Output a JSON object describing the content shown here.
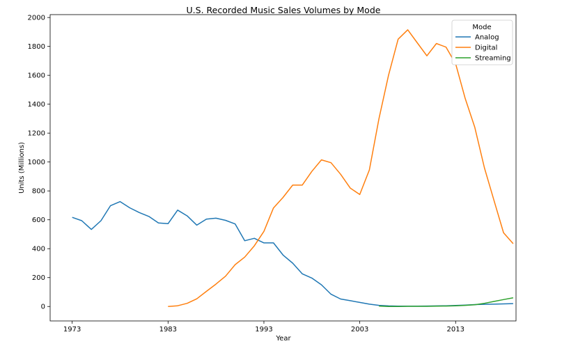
{
  "chart_data": {
    "type": "line",
    "title": "U.S. Recorded Music Sales Volumes by Mode",
    "xlabel": "Year",
    "ylabel": "Units (Millions)",
    "xlim": [
      1970.7,
      2019.3
    ],
    "ylim": [
      -100,
      2020
    ],
    "x_ticks": [
      1973,
      1983,
      1993,
      2003,
      2013
    ],
    "y_ticks": [
      0,
      200,
      400,
      600,
      800,
      1000,
      1200,
      1400,
      1600,
      1800,
      2000
    ],
    "grid": false,
    "legend": {
      "title": "Mode",
      "placement": "top-right"
    },
    "series": [
      {
        "name": "Analog",
        "color": "#1f77b4",
        "x": [
          1973,
          1974,
          1975,
          1976,
          1977,
          1978,
          1979,
          1980,
          1981,
          1982,
          1983,
          1984,
          1985,
          1986,
          1987,
          1988,
          1989,
          1990,
          1991,
          1992,
          1993,
          1994,
          1995,
          1996,
          1997,
          1998,
          1999,
          2000,
          2001,
          2002,
          2003,
          2004,
          2005,
          2006,
          2007,
          2008,
          2009,
          2010,
          2011,
          2012,
          2013,
          2014,
          2015,
          2016,
          2017,
          2018,
          2019
        ],
        "values": [
          617,
          594,
          533,
          594,
          698,
          726,
          683,
          650,
          623,
          578,
          573,
          667,
          627,
          563,
          605,
          611,
          596,
          571,
          455,
          472,
          440,
          440,
          356,
          300,
          226,
          197,
          150,
          85,
          52,
          40,
          28,
          16,
          8,
          4,
          2,
          2,
          2,
          3,
          4,
          5,
          7,
          10,
          13,
          15,
          16,
          18,
          20
        ]
      },
      {
        "name": "Digital",
        "color": "#ff7f0e",
        "x": [
          1983,
          1984,
          1985,
          1986,
          1987,
          1988,
          1989,
          1990,
          1991,
          1992,
          1993,
          1994,
          1995,
          1996,
          1997,
          1998,
          1999,
          2000,
          2001,
          2002,
          2003,
          2004,
          2005,
          2006,
          2007,
          2008,
          2009,
          2010,
          2011,
          2012,
          2013,
          2014,
          2015,
          2016,
          2017,
          2018,
          2019
        ],
        "values": [
          0,
          5,
          22,
          53,
          105,
          155,
          210,
          290,
          342,
          420,
          520,
          682,
          755,
          840,
          840,
          935,
          1015,
          995,
          915,
          820,
          775,
          945,
          1300,
          1600,
          1850,
          1915,
          1825,
          1735,
          1820,
          1795,
          1680,
          1440,
          1240,
          960,
          735,
          510,
          435
        ]
      },
      {
        "name": "Streaming",
        "color": "#2ca02c",
        "x": [
          2005,
          2006,
          2007,
          2008,
          2009,
          2010,
          2011,
          2012,
          2013,
          2014,
          2015,
          2016,
          2017,
          2018,
          2019
        ],
        "values": [
          3,
          0,
          0,
          1,
          1,
          1,
          2,
          3,
          5,
          8,
          12,
          22,
          35,
          48,
          60
        ]
      }
    ]
  }
}
